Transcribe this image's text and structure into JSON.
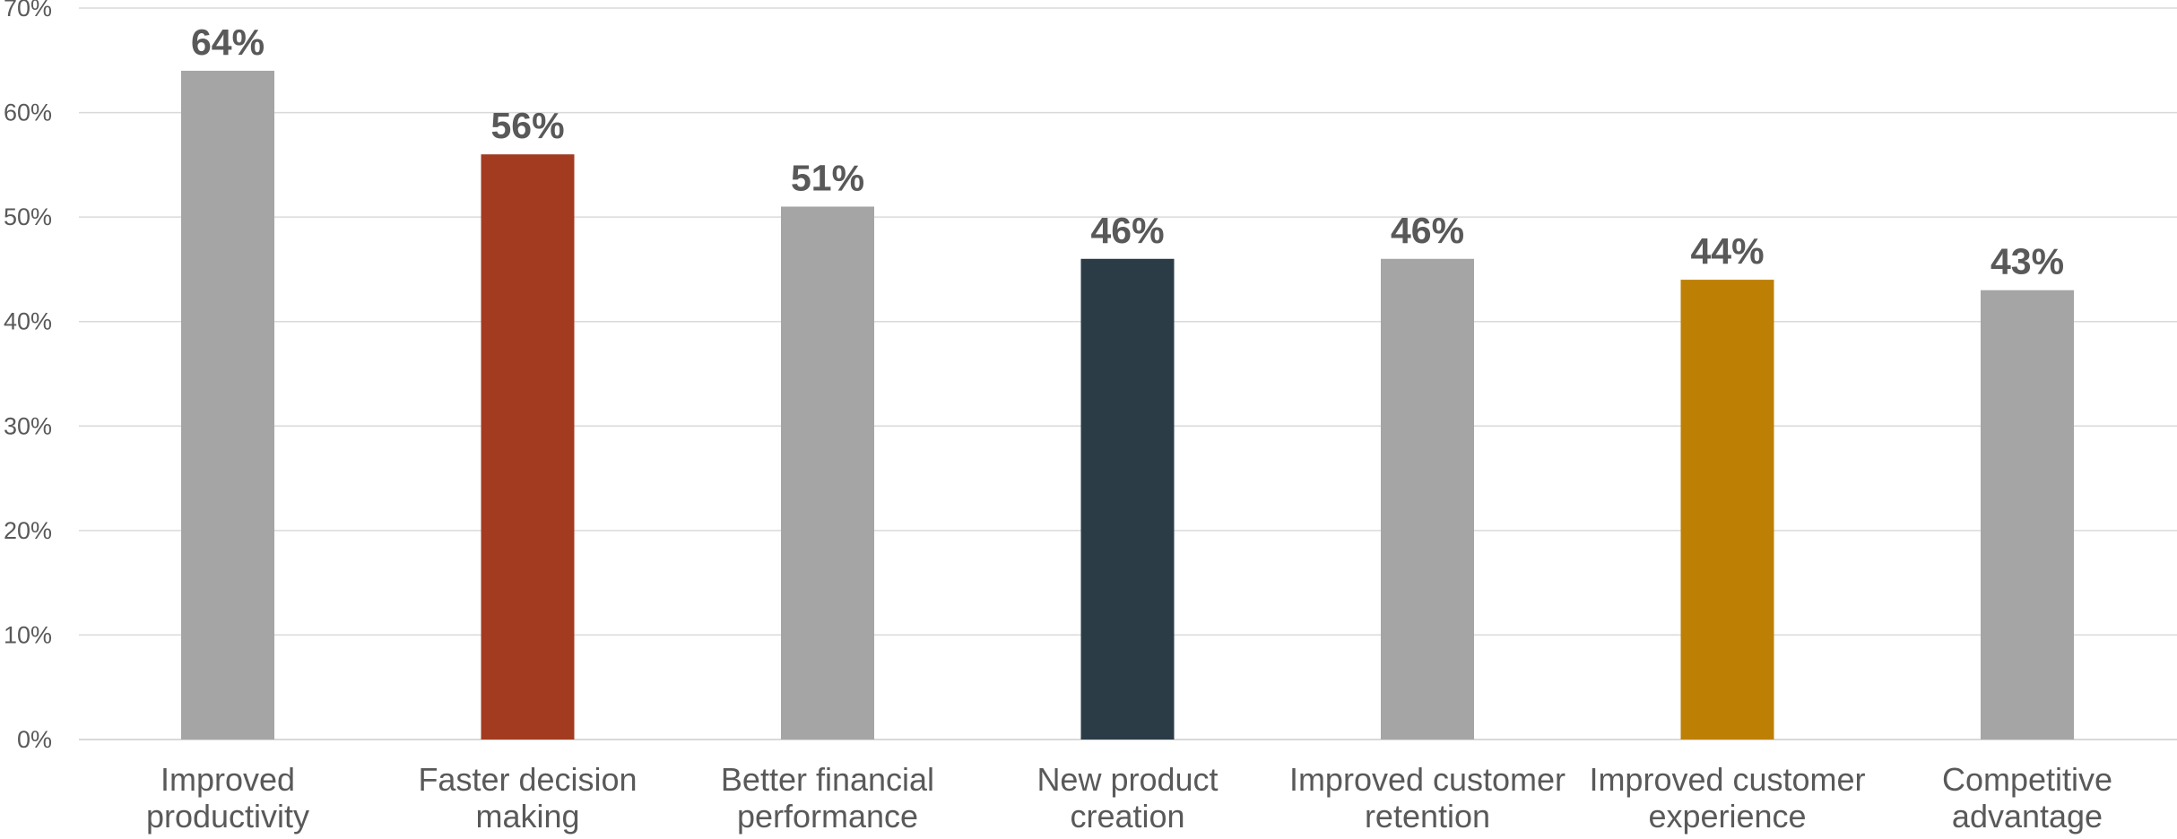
{
  "chart_data": {
    "type": "bar",
    "categories": [
      [
        "Improved",
        "productivity"
      ],
      [
        "Faster decision",
        "making"
      ],
      [
        "Better financial",
        "performance"
      ],
      [
        "New product",
        "creation"
      ],
      [
        "Improved customer",
        "retention"
      ],
      [
        "Improved customer",
        "experience"
      ],
      [
        "Competitive",
        "advantage"
      ]
    ],
    "values": [
      64,
      56,
      51,
      46,
      46,
      44,
      43
    ],
    "value_labels": [
      "64%",
      "56%",
      "51%",
      "46%",
      "46%",
      "44%",
      "43%"
    ],
    "bar_colors": [
      "#a5a5a5",
      "#a23b1f",
      "#a5a5a5",
      "#2b3c47",
      "#a5a5a5",
      "#bd8005",
      "#a5a5a5"
    ],
    "y_ticks": [
      0,
      10,
      20,
      30,
      40,
      50,
      60,
      70
    ],
    "y_tick_labels": [
      "0%",
      "10%",
      "20%",
      "30%",
      "40%",
      "50%",
      "60%",
      "70%"
    ],
    "ylim": [
      0,
      70
    ],
    "grid": true,
    "title": "",
    "xlabel": "",
    "ylabel": ""
  }
}
